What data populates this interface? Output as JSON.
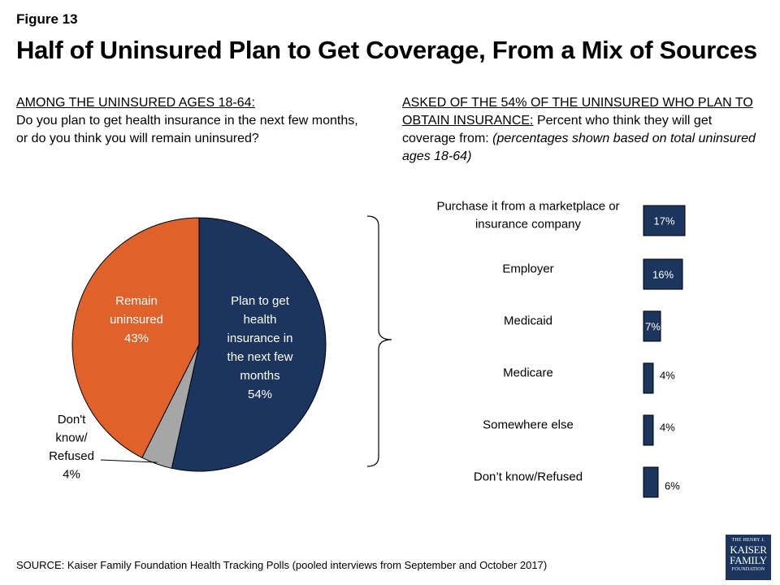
{
  "figure_label": "Figure 13",
  "title": "Half of Uninsured Plan to Get Coverage, From a Mix of Sources",
  "left_question": {
    "heading": "AMONG THE UNINSURED AGES 18-64:",
    "text": "Do you plan to get health insurance in the next few months, or do you think you will remain uninsured?"
  },
  "right_question": {
    "heading": "ASKED OF THE 54% OF THE UNINSURED WHO PLAN TO OBTAIN INSURANCE:",
    "text": " Percent who think they will get coverage from: ",
    "note": "(percentages shown based on total uninsured ages 18-64)"
  },
  "chart_data": [
    {
      "type": "pie",
      "slices": [
        {
          "label": "Plan to get health insurance in the next few months",
          "value": 54,
          "value_label": "54%",
          "color": "#1b355e",
          "label_lines": [
            "Plan to get",
            "health",
            "insurance in",
            "the next few",
            "months"
          ]
        },
        {
          "label": "Don't know/ Refused",
          "value": 4,
          "value_label": "4%",
          "color": "#a6a6a6",
          "label_lines": [
            "Don't",
            "know/",
            "Refused"
          ]
        },
        {
          "label": "Remain uninsured",
          "value": 43,
          "value_label": "43%",
          "color": "#e0612a",
          "label_lines": [
            "Remain",
            "uninsured"
          ]
        }
      ]
    },
    {
      "type": "bar",
      "orientation": "horizontal",
      "color": "#1b355e",
      "categories": [
        "Purchase it from a marketplace or insurance company",
        "Employer",
        "Medicaid",
        "Medicare",
        "Somewhere else",
        "Don’t know/Refused"
      ],
      "category_lines": [
        [
          "Purchase it from a marketplace or",
          "insurance company"
        ],
        [
          "Employer"
        ],
        [
          "Medicaid"
        ],
        [
          "Medicare"
        ],
        [
          "Somewhere else"
        ],
        [
          "Don’t know/Refused"
        ]
      ],
      "values": [
        17,
        16,
        7,
        4,
        4,
        6
      ],
      "value_labels": [
        "17%",
        "16%",
        "7%",
        "4%",
        "4%",
        "6%"
      ]
    }
  ],
  "source": "SOURCE: Kaiser Family Foundation Health Tracking Polls (pooled interviews from September and October 2017)",
  "logo": {
    "line1": "THE HENRY J.",
    "line2": "KAISER",
    "line3": "FAMILY",
    "line4": "FOUNDATION"
  }
}
